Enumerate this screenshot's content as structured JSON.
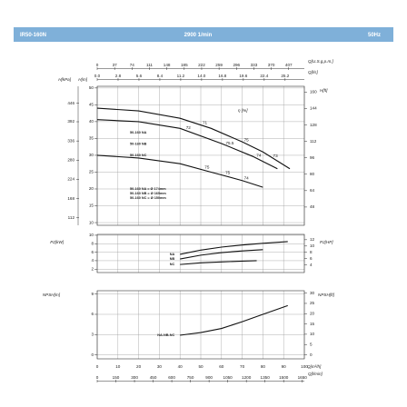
{
  "header": {
    "model": "IR50-160N",
    "speed": "2900 1/min",
    "frequency": "50Hz"
  },
  "chart_data": [
    {
      "type": "line",
      "xlim": [
        0,
        100
      ],
      "xticks": [
        0,
        10,
        20,
        30,
        40,
        50,
        60,
        70,
        80,
        90,
        100
      ],
      "x_top_axes": [
        {
          "label": "Q[U.S.g.p.m.]",
          "lim": [
            0,
            440.3
          ],
          "ticks": [
            0,
            37,
            74,
            111,
            148,
            185,
            222,
            259,
            296,
            333,
            370,
            407
          ]
        },
        {
          "label": "Q[l/s]",
          "lim": [
            0,
            27.78
          ],
          "ticks": [
            {
              "value": 0,
              "label": "0.0"
            },
            2.8,
            5.6,
            8.4,
            11.2,
            {
              "value": 14,
              "label": "14.0"
            },
            16.8,
            19.6,
            22.4,
            25.2
          ]
        }
      ],
      "ylabel": "H[m]",
      "ylim": [
        9.2,
        50.5
      ],
      "yticks": [
        50,
        45,
        40,
        35,
        30,
        25,
        20,
        15,
        10
      ],
      "y_extra": {
        "label": "H[kPa]",
        "lim": [
          90.2,
          495.3
        ],
        "ticks": [
          446,
          392,
          336,
          280,
          224,
          168,
          112
        ]
      },
      "y2label": "H[ft]",
      "y2lim": [
        30.2,
        165.7
      ],
      "y2ticks": [
        160,
        144,
        128,
        112,
        96,
        80,
        64,
        48
      ],
      "grid": true,
      "efficiency_label": "η [%]",
      "series": [
        {
          "name": "50-160 NA",
          "color": "#111111",
          "x": [
            0,
            20,
            40,
            55,
            70,
            80,
            93
          ],
          "values": [
            44,
            43.2,
            41,
            38,
            34,
            31,
            26
          ],
          "efficiency": [
            {
              "x": 52,
              "value": 71
            },
            {
              "x": 72,
              "value": 75
            },
            {
              "x": 86,
              "value": 73
            }
          ]
        },
        {
          "name": "50-160 NB",
          "color": "#111111",
          "x": [
            0,
            20,
            40,
            60,
            75,
            87
          ],
          "values": [
            40.6,
            40,
            38,
            33.5,
            29.7,
            26
          ],
          "efficiency": [
            {
              "x": 44,
              "value": 72
            },
            {
              "x": 64,
              "value": 75.5
            },
            {
              "x": 78,
              "value": 74
            }
          ]
        },
        {
          "name": "50-160 NC",
          "color": "#111111",
          "x": [
            0,
            20,
            40,
            55,
            70,
            80
          ],
          "values": [
            30,
            29.2,
            27.5,
            25,
            22.5,
            20.5
          ],
          "efficiency": [
            {
              "x": 53,
              "value": 75
            },
            {
              "x": 63,
              "value": 75
            },
            {
              "x": 72,
              "value": 74
            }
          ]
        }
      ],
      "notes": [
        "50-160 NA = Ø 174mm",
        "50-160 NB = Ø 165mm",
        "50-160 NC = Ø 150mm"
      ]
    },
    {
      "type": "line",
      "xlim": [
        0,
        100
      ],
      "xticks": [
        0,
        10,
        20,
        30,
        40,
        50,
        60,
        70,
        80,
        90,
        100
      ],
      "ylabel": "P2[kW]",
      "ylim": [
        1.2,
        10.2
      ],
      "yticks": [
        10,
        8,
        6,
        4,
        2
      ],
      "y2label": "P2[HP]",
      "y2lim": [
        1.61,
        13.68
      ],
      "y2ticks": [
        12,
        10,
        8,
        6,
        4
      ],
      "grid": true,
      "series": [
        {
          "name": "NA",
          "color": "#111111",
          "x": [
            40,
            50,
            60,
            70,
            80,
            92
          ],
          "values": [
            5.5,
            6.5,
            7.2,
            7.7,
            8.1,
            8.5
          ]
        },
        {
          "name": "NB",
          "color": "#111111",
          "x": [
            40,
            50,
            60,
            70,
            80
          ],
          "values": [
            4.4,
            5.3,
            5.9,
            6.3,
            6.6
          ]
        },
        {
          "name": "NC",
          "color": "#111111",
          "x": [
            40,
            50,
            60,
            70,
            77
          ],
          "values": [
            3.1,
            3.5,
            3.7,
            3.9,
            4.0
          ]
        }
      ]
    },
    {
      "type": "line",
      "xlabel": "Q[m³/h]",
      "xlim": [
        0,
        100
      ],
      "xticks": [
        0,
        10,
        20,
        30,
        40,
        50,
        60,
        70,
        80,
        90,
        100
      ],
      "x_bottom_axes": [
        {
          "label": "Q[l/min]",
          "lim": [
            0,
            1666.7
          ],
          "ticks": [
            0,
            150,
            300,
            450,
            600,
            750,
            900,
            1050,
            1200,
            1350,
            1500,
            1650
          ]
        }
      ],
      "ylabel": "NPSH[m]",
      "ylim": [
        -0.6,
        9.5
      ],
      "yticks": [
        9,
        6,
        3,
        0
      ],
      "y2label": "NPSH[ft]",
      "y2lim": [
        -1.97,
        31.17
      ],
      "y2ticks": [
        30,
        25,
        20,
        15,
        10,
        5,
        0
      ],
      "grid": true,
      "series": [
        {
          "name": "NA-NB-NC",
          "color": "#111111",
          "x": [
            40,
            50,
            60,
            70,
            80,
            92
          ],
          "values": [
            2.9,
            3.3,
            3.9,
            4.9,
            6.0,
            7.3
          ]
        }
      ]
    }
  ]
}
